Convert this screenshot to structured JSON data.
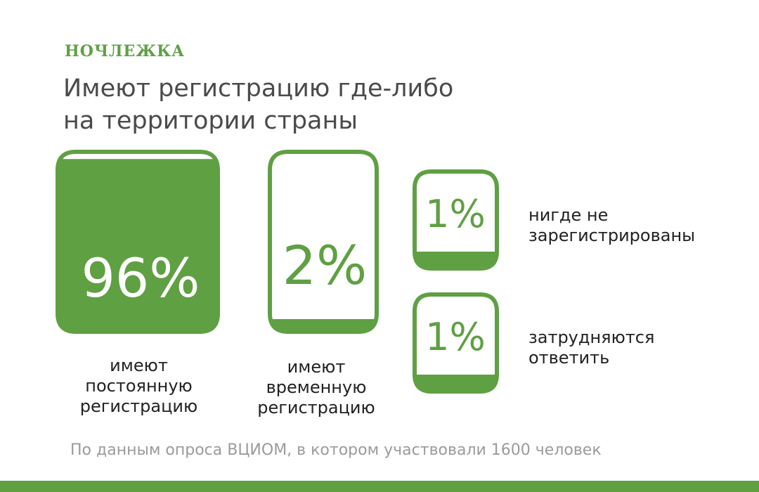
{
  "logo": "НОЧЛЕЖКА",
  "title_lines": [
    "Имеют регистрацию где-либо",
    "на территории страны"
  ],
  "source": "По данным опроса ВЦИОМ, в котором участвовали 1600 человек",
  "colors": {
    "accent": "#5fa043",
    "text": "#222222",
    "title": "#4a4a4a",
    "muted": "#9b9b9b"
  },
  "chart_data": {
    "type": "bar",
    "title": "Имеют регистрацию где-либо на территории страны",
    "unit": "%",
    "categories": [
      "имеют постоянную регистрацию",
      "имеют временную регистрацию",
      "нигде не зарегистрированы",
      "затрудняются ответить"
    ],
    "values": [
      96,
      2,
      1,
      1
    ],
    "labels": [
      "96%",
      "2%",
      "1%",
      "1%"
    ],
    "caption_lines": [
      [
        "имеют",
        "постоянную",
        "регистрацию"
      ],
      [
        "имеют",
        "временную",
        "регистрацию"
      ],
      [
        "нигде не",
        "зарегистрированы"
      ],
      [
        "затрудняются",
        "ответить"
      ]
    ]
  }
}
